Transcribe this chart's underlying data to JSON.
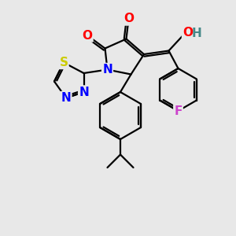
{
  "background_color": "#e8e8e8",
  "bond_color": "#000000",
  "atom_colors": {
    "O": "#ff0000",
    "N": "#0000ff",
    "S": "#cccc00",
    "F": "#cc44cc",
    "C": "#000000",
    "H": "#448888"
  },
  "font_size_atoms": 11,
  "font_size_small": 9,
  "lw": 1.6
}
